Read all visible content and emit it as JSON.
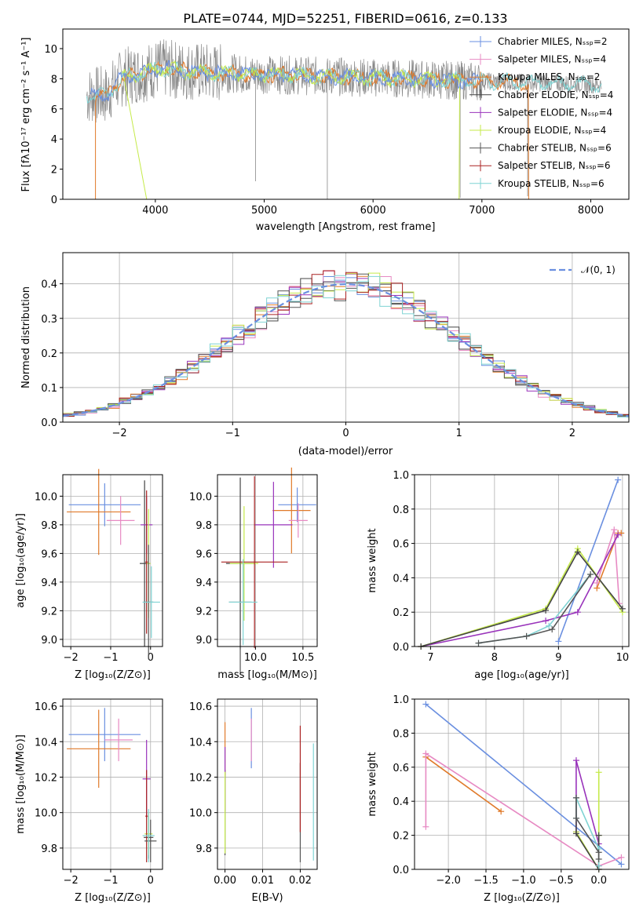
{
  "colors": {
    "c1": "#6a8fe0",
    "c2": "#e07a2a",
    "c3": "#e78ac3",
    "c4": "#444444",
    "c5": "#9933bb",
    "c6": "#c5ea4a",
    "c7": "#555555",
    "c8": "#aa2222",
    "c9": "#7fd3d3"
  },
  "chart_data": [
    {
      "id": "spectrum",
      "type": "line",
      "title": "PLATE=0744, MJD=52251, FIBERID=0616, z=0.133",
      "xlabel": "wavelength [Angstrom, rest frame]",
      "ylabel": "Flux [fλ10⁻¹⁷ erg cm⁻² s⁻¹ A⁻¹]",
      "xlim": [
        3150,
        8350
      ],
      "ylim": [
        0,
        11.3
      ],
      "xticks": [
        "4000",
        "5000",
        "6000",
        "7000",
        "8000"
      ],
      "yticks": [
        "0",
        "2",
        "4",
        "6",
        "8",
        "10"
      ],
      "grid": false,
      "legend_position": "right",
      "legend": [
        {
          "text": "Chabrier MILES, Nₛₛₚ=2",
          "color": "c1"
        },
        {
          "text": "Salpeter MILES, Nₛₛₚ=4",
          "color": "c3"
        },
        {
          "text": "Kroupa MILES, Nₛₛₚ=2",
          "color": "c2"
        },
        {
          "text": "Chabrier ELODIE, Nₛₛₚ=4",
          "color": "c4"
        },
        {
          "text": "Salpeter ELODIE, Nₛₛₚ=4",
          "color": "c5"
        },
        {
          "text": "Kroupa ELODIE, Nₛₛₚ=4",
          "color": "c6"
        },
        {
          "text": "Chabrier STELIB, Nₛₛₚ=6",
          "color": "c7"
        },
        {
          "text": "Salpeter STELIB, Nₛₛₚ=6",
          "color": "c8"
        },
        {
          "text": "Kroupa STELIB, Nₛₛₚ=6",
          "color": "c9"
        }
      ]
    },
    {
      "id": "residuals",
      "type": "line",
      "xlabel": "(data-model)/error",
      "ylabel": "Normed distribution",
      "xlim": [
        -2.5,
        2.5
      ],
      "ylim": [
        0,
        0.49
      ],
      "xticks": [
        "−2",
        "−1",
        "0",
        "1",
        "2"
      ],
      "yticks": [
        "0.0",
        "0.1",
        "0.2",
        "0.3",
        "0.4"
      ],
      "grid": true,
      "legend_position": "top-right",
      "legend": [
        {
          "text": "𝒩(0, 1)",
          "color": "c1"
        }
      ]
    },
    {
      "id": "age-vs-z",
      "type": "scatter",
      "xlabel": "Z [log₁₀(Z/Z⊙)]",
      "ylabel": "age  [log₁₀(age/yr)]",
      "xlim": [
        -2.2,
        0.3
      ],
      "ylim": [
        8.95,
        10.15
      ],
      "xticks": [
        "−2",
        "−1",
        "0"
      ],
      "yticks": [
        "9.0",
        "9.2",
        "9.4",
        "9.6",
        "9.8",
        "10.0"
      ],
      "grid": true,
      "points": [
        {
          "x": -1.15,
          "y": 9.94,
          "xerr": 0.9,
          "yerr": 0.15,
          "color": "c1"
        },
        {
          "x": -1.3,
          "y": 9.89,
          "xerr": 0.8,
          "yerr": 0.3,
          "color": "c2"
        },
        {
          "x": -0.75,
          "y": 9.83,
          "xerr": 0.35,
          "yerr": 0.17,
          "color": "c3"
        },
        {
          "x": -0.15,
          "y": 9.53,
          "xerr": 0.12,
          "yerr": 0.58,
          "color": "c4"
        },
        {
          "x": -0.1,
          "y": 9.8,
          "xerr": 0.15,
          "yerr": 0.2,
          "color": "c5"
        },
        {
          "x": -0.05,
          "y": 9.53,
          "xerr": 0.05,
          "yerr": 0.38,
          "color": "c6"
        },
        {
          "x": -0.05,
          "y": 9.26,
          "xerr": 0.12,
          "yerr": 0.4,
          "color": "c7"
        },
        {
          "x": -0.1,
          "y": 9.54,
          "xerr": 0.03,
          "yerr": 0.5,
          "color": "c8"
        },
        {
          "x": 0.02,
          "y": 9.26,
          "xerr": 0.22,
          "yerr": 0.25,
          "color": "c9"
        }
      ]
    },
    {
      "id": "age-vs-mass",
      "type": "scatter",
      "xlabel": "mass [log₁₀(M/M⊙)]",
      "xlim": [
        9.6,
        10.65
      ],
      "ylim": [
        8.95,
        10.15
      ],
      "xticks": [
        "10.0",
        "10.5"
      ],
      "yticks": [
        "9.0",
        "9.2",
        "9.4",
        "9.6",
        "9.8",
        "10.0"
      ],
      "grid": true,
      "points": [
        {
          "x": 10.44,
          "y": 9.94,
          "xerr": 0.2,
          "yerr": 0.12,
          "color": "c1"
        },
        {
          "x": 10.38,
          "y": 9.9,
          "xerr": 0.2,
          "yerr": 0.3,
          "color": "c2"
        },
        {
          "x": 10.45,
          "y": 9.83,
          "xerr": 0.1,
          "yerr": 0.12,
          "color": "c3"
        },
        {
          "x": 9.84,
          "y": 9.53,
          "xerr": 0.15,
          "yerr": 0.6,
          "color": "c4"
        },
        {
          "x": 10.19,
          "y": 9.8,
          "xerr": 0.2,
          "yerr": 0.3,
          "color": "c5"
        },
        {
          "x": 9.88,
          "y": 9.53,
          "xerr": 0.15,
          "yerr": 0.4,
          "color": "c6"
        },
        {
          "x": 9.84,
          "y": 9.26,
          "xerr": 0.12,
          "yerr": 0.5,
          "color": "c7"
        },
        {
          "x": 9.99,
          "y": 9.54,
          "xerr": 0.35,
          "yerr": 0.6,
          "color": "c8"
        },
        {
          "x": 9.87,
          "y": 9.26,
          "xerr": 0.15,
          "yerr": 0.3,
          "color": "c9"
        }
      ]
    },
    {
      "id": "mass-weight-vs-age",
      "type": "line",
      "xlabel": "age  [log₁₀(age/yr)]",
      "ylabel": "mass weight",
      "xlim": [
        6.75,
        10.1
      ],
      "ylim": [
        0,
        1.0
      ],
      "xticks": [
        "7",
        "8",
        "9",
        "10"
      ],
      "yticks": [
        "0.0",
        "0.2",
        "0.4",
        "0.6",
        "0.8",
        "1.0"
      ],
      "grid": true,
      "series": [
        {
          "color": "c1",
          "x": [
            9.0,
            9.93
          ],
          "y": [
            0.03,
            0.97
          ]
        },
        {
          "color": "c2",
          "x": [
            9.6,
            9.93,
            9.98
          ],
          "y": [
            0.34,
            0.66,
            0.66
          ]
        },
        {
          "color": "c3",
          "x": [
            9.6,
            9.87,
            9.95
          ],
          "y": [
            0.37,
            0.68,
            0.25
          ]
        },
        {
          "color": "c5",
          "x": [
            6.85,
            8.8,
            9.3,
            9.93
          ],
          "y": [
            0.0,
            0.15,
            0.2,
            0.65
          ]
        },
        {
          "color": "c6",
          "x": [
            6.85,
            8.8,
            9.3,
            10.0
          ],
          "y": [
            0.0,
            0.22,
            0.57,
            0.2
          ]
        },
        {
          "color": "c4",
          "x": [
            6.85,
            8.8,
            9.3,
            10.0
          ],
          "y": [
            0.0,
            0.21,
            0.55,
            0.22
          ]
        },
        {
          "color": "c9",
          "x": [
            7.75,
            8.5,
            8.85,
            9.5
          ],
          "y": [
            0.02,
            0.06,
            0.12,
            0.42
          ]
        },
        {
          "color": "c7",
          "x": [
            7.75,
            8.5,
            8.9,
            9.5
          ],
          "y": [
            0.02,
            0.06,
            0.1,
            0.42
          ]
        }
      ]
    },
    {
      "id": "mass-vs-z",
      "type": "scatter",
      "xlabel": "Z [log₁₀(Z/Z⊙)]",
      "ylabel": "mass [log₁₀(M/M⊙)]",
      "xlim": [
        -2.2,
        0.3
      ],
      "ylim": [
        9.68,
        10.64
      ],
      "xticks": [
        "−2",
        "−1",
        "0"
      ],
      "yticks": [
        "9.8",
        "10.0",
        "10.2",
        "10.4",
        "10.6"
      ],
      "grid": true,
      "points": [
        {
          "x": -1.15,
          "y": 10.44,
          "xerr": 0.9,
          "yerr": 0.15,
          "color": "c1"
        },
        {
          "x": -1.3,
          "y": 10.36,
          "xerr": 0.8,
          "yerr": 0.22,
          "color": "c2"
        },
        {
          "x": -0.8,
          "y": 10.41,
          "xerr": 0.35,
          "yerr": 0.12,
          "color": "c3"
        },
        {
          "x": -0.1,
          "y": 10.19,
          "xerr": 0.1,
          "yerr": 0.22,
          "color": "c5"
        },
        {
          "x": -0.05,
          "y": 9.86,
          "xerr": 0.12,
          "yerr": 0.12,
          "color": "c4"
        },
        {
          "x": -0.05,
          "y": 9.88,
          "xerr": 0.1,
          "yerr": 0.12,
          "color": "c6"
        },
        {
          "x": -0.1,
          "y": 9.98,
          "xerr": 0.03,
          "yerr": 0.26,
          "color": "c8"
        },
        {
          "x": 0.0,
          "y": 9.84,
          "xerr": 0.15,
          "yerr": 0.12,
          "color": "c7"
        },
        {
          "x": -0.05,
          "y": 9.87,
          "xerr": 0.15,
          "yerr": 0.15,
          "color": "c9"
        }
      ]
    },
    {
      "id": "mass-vs-ebv",
      "type": "scatter",
      "xlabel": "E(B-V)",
      "xlim": [
        -0.002,
        0.0245
      ],
      "ylim": [
        9.68,
        10.64
      ],
      "xticks": [
        "0.00",
        "0.01",
        "0.02"
      ],
      "yticks": [
        "9.8",
        "10.0",
        "10.2",
        "10.4",
        "10.6"
      ],
      "grid": true,
      "points": [
        {
          "x": 0.007,
          "y": 10.42,
          "xerr": 0,
          "yerr": 0.17,
          "color": "c1"
        },
        {
          "x": 0.0,
          "y": 10.36,
          "xerr": 0,
          "yerr": 0.15,
          "color": "c2"
        },
        {
          "x": 0.007,
          "y": 10.41,
          "xerr": 0,
          "yerr": 0.12,
          "color": "c3"
        },
        {
          "x": 0.0,
          "y": 10.0,
          "xerr": 0,
          "yerr": 0.24,
          "color": "c4"
        },
        {
          "x": 0.0,
          "y": 10.19,
          "xerr": 0,
          "yerr": 0.18,
          "color": "c5"
        },
        {
          "x": 0.0,
          "y": 10.0,
          "xerr": 0,
          "yerr": 0.23,
          "color": "c6"
        },
        {
          "x": 0.02,
          "y": 10.0,
          "xerr": 0,
          "yerr": 0.28,
          "color": "c7"
        },
        {
          "x": 0.02,
          "y": 10.19,
          "xerr": 0,
          "yerr": 0.3,
          "color": "c8"
        },
        {
          "x": 0.0235,
          "y": 10.06,
          "xerr": 0,
          "yerr": 0.33,
          "color": "c9"
        }
      ]
    },
    {
      "id": "mass-weight-vs-z",
      "type": "line",
      "xlabel": "Z [log₁₀(Z/Z⊙)]",
      "ylabel": "mass weight",
      "xlim": [
        -2.45,
        0.4
      ],
      "ylim": [
        0,
        1.0
      ],
      "xticks": [
        "−2.0",
        "−1.5",
        "−1.0",
        "−0.5",
        "0.0"
      ],
      "yticks": [
        "0.0",
        "0.2",
        "0.4",
        "0.6",
        "0.8",
        "1.0"
      ],
      "grid": true,
      "series": [
        {
          "color": "c1",
          "x": [
            -2.3,
            0.3
          ],
          "y": [
            0.97,
            0.03
          ]
        },
        {
          "color": "c2",
          "x": [
            -2.3,
            -1.3
          ],
          "y": [
            0.66,
            0.34
          ]
        },
        {
          "color": "c3",
          "x": [
            -2.3,
            -2.3,
            0.0,
            0.3
          ],
          "y": [
            0.25,
            0.68,
            0.02,
            0.07
          ]
        },
        {
          "color": "c5",
          "x": [
            -0.3,
            -0.3,
            0.0,
            0.0
          ],
          "y": [
            0.22,
            0.64,
            0.15,
            0.0
          ]
        },
        {
          "color": "c6",
          "x": [
            -0.3,
            0.0,
            0.0,
            0.0
          ],
          "y": [
            0.22,
            0.0,
            0.57,
            0.2
          ]
        },
        {
          "color": "c4",
          "x": [
            -0.3,
            -0.3,
            0.0,
            0.0
          ],
          "y": [
            0.42,
            0.21,
            0.0,
            0.2
          ]
        },
        {
          "color": "c9",
          "x": [
            -0.3,
            -0.3,
            0.0,
            0.0
          ],
          "y": [
            0.3,
            0.42,
            0.12,
            0.02
          ]
        },
        {
          "color": "c7",
          "x": [
            -0.3,
            -0.3,
            0.0,
            0.0
          ],
          "y": [
            0.42,
            0.3,
            0.1,
            0.06
          ]
        }
      ]
    }
  ]
}
